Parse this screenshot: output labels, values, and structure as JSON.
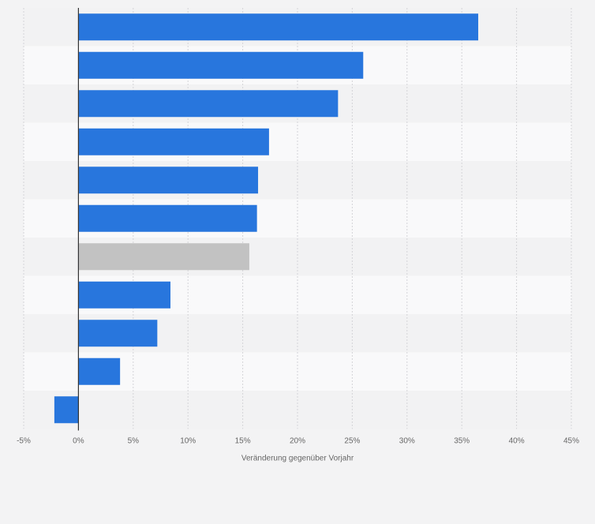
{
  "chart_data": {
    "type": "bar",
    "orientation": "horizontal",
    "categories": [
      "",
      "",
      "",
      "",
      "",
      "",
      "",
      "",
      "",
      "",
      ""
    ],
    "values": [
      36.5,
      26.0,
      23.7,
      17.4,
      16.4,
      16.3,
      15.6,
      8.4,
      7.2,
      3.8,
      -2.2
    ],
    "highlighted_index": 6,
    "bar_color": "#2876dd",
    "highlight_color": "#c2c2c2",
    "xlabel": "Veränderung gegenüber Vorjahr",
    "ylabel": "",
    "xlim": [
      -5,
      45
    ],
    "x_ticks": [
      "-5%",
      "0%",
      "5%",
      "10%",
      "15%",
      "20%",
      "25%",
      "30%",
      "35%",
      "40%",
      "45%"
    ],
    "tick_values": [
      -5,
      0,
      5,
      10,
      15,
      20,
      25,
      30,
      35,
      40,
      45
    ],
    "grid": true,
    "legend": "none"
  }
}
